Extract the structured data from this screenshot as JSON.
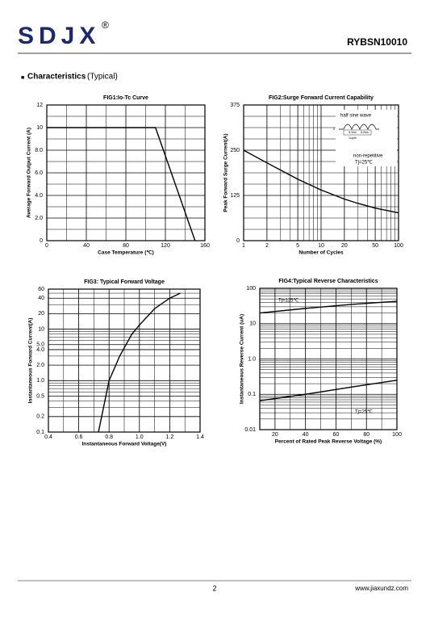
{
  "header": {
    "logo": "SDJX",
    "registered": "®",
    "part_number": "RYBSN10010"
  },
  "section": {
    "bullet": "■",
    "title": "Characteristics",
    "subtitle": "(Typical)"
  },
  "chart_data": [
    {
      "type": "line",
      "title": "FIG1:Io-Tc Curve",
      "xlabel": "Case Temperature (℃)",
      "ylabel": "Average Forward Output Current (A)",
      "xlim": [
        0,
        160
      ],
      "ylim": [
        0,
        12
      ],
      "xticks": [
        0,
        40,
        80,
        120,
        160
      ],
      "yticks": [
        0,
        {
          "value": 2,
          "label": "2.0"
        },
        {
          "value": 4,
          "label": "4.0"
        },
        {
          "value": 6,
          "label": "6.0"
        },
        {
          "value": 8,
          "label": "8.0"
        },
        10,
        12
      ],
      "grid": true,
      "minor_xticks": [
        20,
        60,
        100,
        140
      ],
      "minor_yticks": [
        1,
        3,
        5,
        7,
        9,
        11
      ],
      "series": [
        {
          "color": "#000000",
          "x": [
            0,
            110,
            150
          ],
          "values": [
            10,
            10,
            0
          ]
        }
      ],
      "annotations": []
    },
    {
      "type": "line",
      "title": "FIG2:Surge Forward Current Capability",
      "xlabel": "Number of Cycles",
      "ylabel": "Peak Forward Surge Current(A)",
      "xscale": "log",
      "xlim": [
        1,
        100
      ],
      "ylim": [
        0,
        375
      ],
      "xticks": [
        1,
        2,
        5,
        10,
        20,
        50,
        100
      ],
      "yticks": [
        0,
        125,
        250,
        375
      ],
      "grid": true,
      "minor_xticks": [
        3,
        4,
        6,
        7,
        8,
        9,
        30,
        40,
        60,
        70,
        80,
        90
      ],
      "minor_yticks": [
        31.25,
        62.5,
        93.75,
        156.25,
        187.5,
        218.75,
        281.25,
        312.5,
        343.75
      ],
      "series": [
        {
          "color": "#000000",
          "x": [
            1,
            2,
            3,
            5,
            10,
            20,
            30,
            50,
            100
          ],
          "values": [
            250,
            215,
            195,
            170,
            140,
            115,
            103,
            90,
            77
          ]
        }
      ],
      "annotations": [
        "half sine wave",
        "non-repetitive",
        "Tj=25℃",
        "0",
        "8.3ms",
        "8.3ms",
        "1cycle"
      ]
    },
    {
      "type": "line",
      "title": "FIG3: Typical Forward Voltage",
      "xlabel": "Instantaneous Forward Voltage(V)",
      "ylabel": "Instantaneous Forward Current(A)",
      "yscale": "log",
      "xlim": [
        0.4,
        1.4
      ],
      "ylim": [
        0.1,
        60
      ],
      "xticks": [
        0.4,
        0.6,
        0.8,
        {
          "value": 1,
          "label": "1.0"
        },
        1.2,
        1.4
      ],
      "yticks": [
        0.1,
        0.2,
        0.5,
        {
          "value": 1,
          "label": "1.0"
        },
        {
          "value": 2,
          "label": "2.0"
        },
        {
          "value": 4,
          "label": "4.0"
        },
        {
          "value": 5,
          "label": "5.0"
        },
        10,
        20,
        40,
        60
      ],
      "grid": true,
      "minor_xticks": [
        0.5,
        0.7,
        0.9,
        1.1,
        1.3
      ],
      "minor_yticks": [
        0.3,
        0.4,
        0.6,
        0.7,
        0.8,
        0.9,
        3,
        6,
        7,
        8,
        9,
        30,
        50
      ],
      "series": [
        {
          "color": "#000000",
          "x": [
            0.73,
            0.8,
            0.87,
            0.95,
            1.0,
            1.1,
            1.2,
            1.27
          ],
          "values": [
            0.1,
            1,
            3,
            8,
            12,
            25,
            40,
            50
          ]
        }
      ],
      "annotations": []
    },
    {
      "type": "line",
      "title": "FIG4:Typical Reverse Characteristics",
      "xlabel": "Percent of Rated Peak Reverse Voltage  (%)",
      "ylabel": "Instantaneous Reverse Current (uA)",
      "yscale": "log",
      "xlim": [
        10,
        100
      ],
      "ylim": [
        0.01,
        100
      ],
      "xticks": [
        20,
        40,
        60,
        80,
        100
      ],
      "yticks": [
        0.01,
        0.1,
        {
          "value": 1,
          "label": "1.0"
        },
        10,
        100
      ],
      "grid": true,
      "minor_xticks": [
        30,
        50,
        70,
        90
      ],
      "minor_yticks": [
        0.02,
        0.03,
        0.04,
        0.05,
        0.06,
        0.07,
        0.08,
        0.09,
        0.2,
        0.3,
        0.4,
        0.5,
        0.6,
        0.7,
        0.8,
        0.9,
        2,
        3,
        4,
        5,
        6,
        7,
        8,
        9,
        20,
        30,
        40,
        50,
        60,
        70,
        80,
        90
      ],
      "series": [
        {
          "color": "#000000",
          "x": [
            10,
            40,
            70,
            100
          ],
          "values": [
            20,
            27,
            35,
            43
          ]
        },
        {
          "color": "#000000",
          "x": [
            10,
            40,
            70,
            100
          ],
          "values": [
            0.066,
            0.1,
            0.16,
            0.25
          ]
        }
      ],
      "annotations": [
        "Tj=125℃",
        "Tj=25℃"
      ]
    }
  ],
  "footer": {
    "page": "2",
    "website": "www.jiaxundz.com"
  }
}
